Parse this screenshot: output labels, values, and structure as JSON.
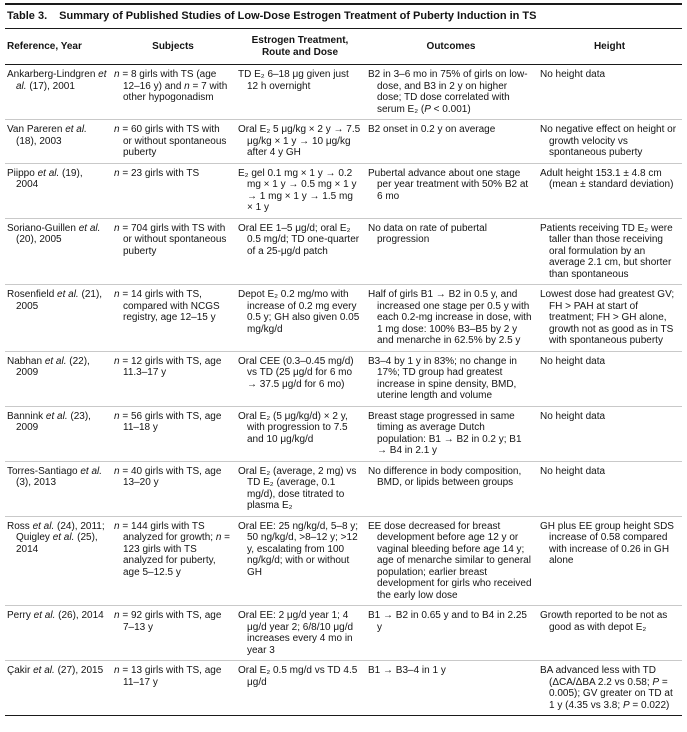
{
  "table": {
    "label": "Table 3.",
    "title": "Summary of Published Studies of Low-Dose Estrogen Treatment of Puberty Induction in TS",
    "columns": [
      "Reference, Year",
      "Subjects",
      "Estrogen Treatment, Route and Dose",
      "Outcomes",
      "Height"
    ],
    "rows": [
      {
        "reference": "Ankarberg-Lindgren et al. (17), 2001",
        "subjects": "n = 8 girls with TS (age 12–16 y) and n = 7 with other hypogonadism",
        "treatment": "TD E₂ 6–18 μg given just 12 h overnight",
        "outcomes": "B2 in 3–6 mo in 75% of girls on low-dose, and B3 in 2 y on higher dose; TD dose correlated with serum E₂ (P < 0.001)",
        "height": "No height data"
      },
      {
        "reference": "Van Pareren et al. (18), 2003",
        "subjects": "n = 60 girls with TS with or without spontaneous puberty",
        "treatment": "Oral E₂ 5 μg/kg × 2 y → 7.5 μg/kg × 1 y → 10 μg/kg after 4 y GH",
        "outcomes": "B2 onset in 0.2 y on average",
        "height": "No negative effect on height or growth velocity vs spontaneous puberty"
      },
      {
        "reference": "Piippo et al. (19), 2004",
        "subjects": "n = 23 girls with TS",
        "treatment": "E₂ gel 0.1 mg × 1 y → 0.2 mg × 1 y → 0.5 mg × 1 y → 1 mg × 1 y → 1.5 mg × 1 y",
        "outcomes": "Pubertal advance about one stage per year treatment with 50% B2 at 6 mo",
        "height": "Adult height 153.1 ± 4.8 cm (mean ± standard deviation)"
      },
      {
        "reference": "Soriano-Guillen et al. (20), 2005",
        "subjects": "n = 704 girls with TS with or without spontaneous puberty",
        "treatment": "Oral EE 1–5 μg/d; oral E₂ 0.5 mg/d; TD one-quarter of a 25-μg/d patch",
        "outcomes": "No data on rate of pubertal progression",
        "height": "Patients receiving TD E₂ were taller than those receiving oral formulation by an average 2.1 cm, but shorter than spontaneous"
      },
      {
        "reference": "Rosenfield et al. (21), 2005",
        "subjects": "n = 14 girls with TS, compared with NCGS registry, age 12–15 y",
        "treatment": "Depot E₂ 0.2 mg/mo with increase of 0.2 mg every 0.5 y; GH also given 0.05 mg/kg/d",
        "outcomes": "Half of girls B1 → B2 in 0.5 y, and increased one stage per 0.5 y with each 0.2-mg increase in dose, with 1 mg dose: 100% B3–B5 by 2 y and menarche in 62.5% by 2.5 y",
        "height": "Lowest dose had greatest GV; FH > PAH at start of treatment; FH > GH alone, growth not as good as in TS with spontaneous puberty"
      },
      {
        "reference": "Nabhan et al. (22), 2009",
        "subjects": "n = 12 girls with TS, age 11.3–17 y",
        "treatment": "Oral CEE (0.3–0.45 mg/d) vs TD (25 μg/d for 6 mo → 37.5 μg/d for 6 mo)",
        "outcomes": "B3–4 by 1 y in 83%; no change in 17%; TD group had greatest increase in spine density, BMD, uterine length and volume",
        "height": "No height data"
      },
      {
        "reference": "Bannink et al. (23), 2009",
        "subjects": "n = 56 girls with TS, age 11–18 y",
        "treatment": "Oral E₂ (5 μg/kg/d) × 2 y, with progression to 7.5 and 10 μg/kg/d",
        "outcomes": "Breast stage progressed in same timing as average Dutch population: B1 → B2 in 0.2 y; B1 → B4 in 2.1 y",
        "height": "No height data"
      },
      {
        "reference": "Torres-Santiago et al. (3), 2013",
        "subjects": "n = 40 girls with TS, age 13–20 y",
        "treatment": "Oral E₂ (average, 2 mg) vs TD E₂ (average, 0.1 mg/d), dose titrated to plasma E₂",
        "outcomes": "No difference in body composition, BMD, or lipids between groups",
        "height": "No height data"
      },
      {
        "reference": "Ross et al. (24), 2011; Quigley et al. (25), 2014",
        "subjects": "n = 144 girls with TS analyzed for growth; n = 123 girls with TS analyzed for puberty, age 5–12.5 y",
        "treatment": "Oral EE: 25 ng/kg/d, 5–8 y; 50 ng/kg/d, >8–12 y; >12 y, escalating from 100 ng/kg/d; with or without GH",
        "outcomes": "EE dose decreased for breast development before age 12 y or vaginal bleeding before age 14 y; age of menarche similar to general population; earlier breast development for girls who received the early low dose",
        "height": "GH plus EE group height SDS increase of 0.58 compared with increase of 0.26 in GH alone"
      },
      {
        "reference": "Perry et al. (26), 2014",
        "subjects": "n = 92 girls with TS, age 7–13 y",
        "treatment": "Oral EE: 2 μg/d year 1; 4 μg/d year 2; 6/8/10 μg/d increases every 4 mo in year 3",
        "outcomes": "B1 → B2 in 0.65 y and to B4 in 2.25 y",
        "height": "Growth reported to be not as good as with depot E₂"
      },
      {
        "reference": "Çakir et al. (27), 2015",
        "subjects": "n = 13 girls with TS, age 11–17 y",
        "treatment": "Oral E₂ 0.5 mg/d vs TD 4.5 μg/d",
        "outcomes": "B1 → B3–4 in 1 y",
        "height": "BA advanced less with TD (ΔCA/ΔBA 2.2 vs 0.58; P = 0.005); GV greater on TD at 1 y (4.35 vs 3.8; P = 0.022)"
      }
    ]
  }
}
